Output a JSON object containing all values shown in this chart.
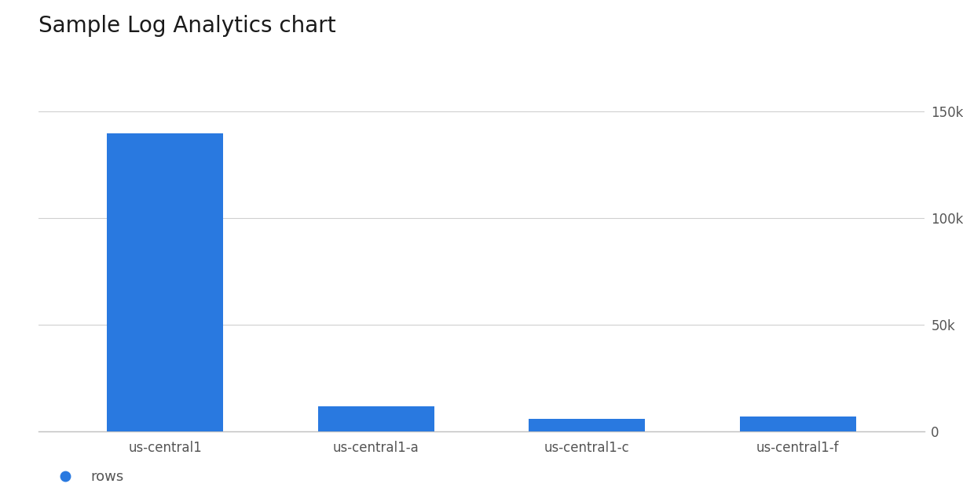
{
  "title": "Sample Log Analytics chart",
  "categories": [
    "us-central1",
    "us-central1-a",
    "us-central1-c",
    "us-central1-f"
  ],
  "values": [
    140000,
    12000,
    6000,
    7000
  ],
  "bar_color": "#2979e0",
  "background_color": "#ffffff",
  "ylim": [
    0,
    160000
  ],
  "yticks": [
    0,
    50000,
    100000,
    150000
  ],
  "ytick_labels": [
    "0",
    "50k",
    "100k",
    "150k"
  ],
  "title_fontsize": 20,
  "tick_fontsize": 12,
  "legend_label": "rows",
  "legend_color": "#2979e0",
  "grid_color": "#d0d0d0",
  "spine_color": "#c0c0c0",
  "tick_color": "#555555",
  "title_color": "#1a1a1a"
}
